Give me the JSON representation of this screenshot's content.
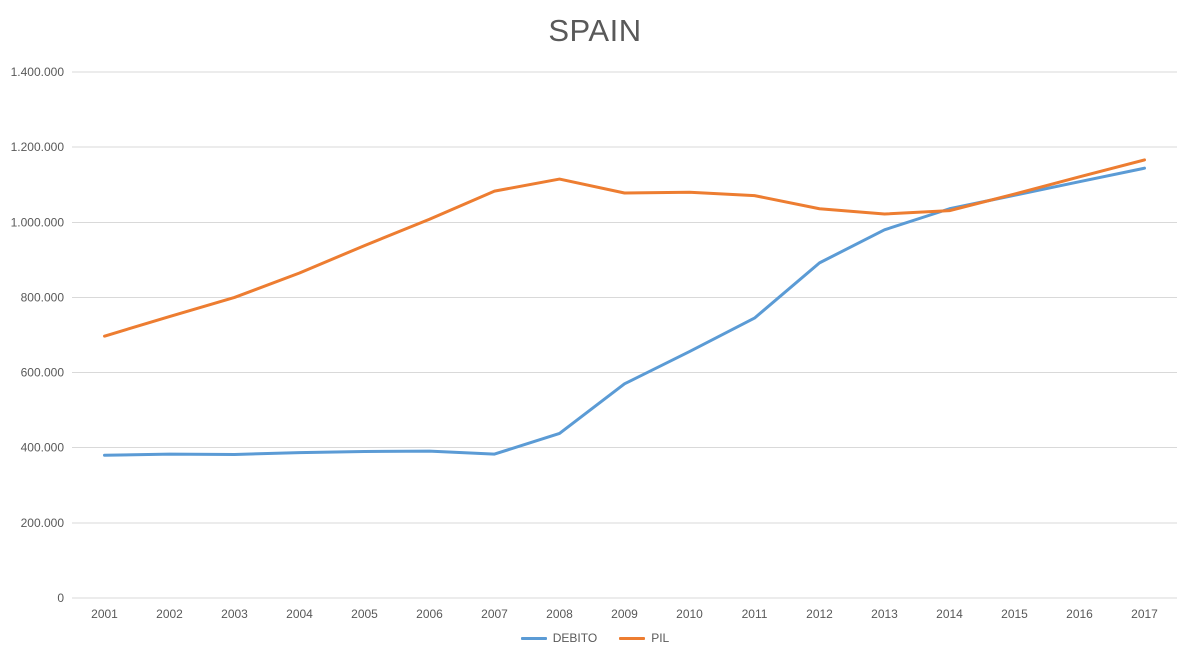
{
  "chart_data": {
    "type": "line",
    "title": "SPAIN",
    "categories": [
      "2001",
      "2002",
      "2003",
      "2004",
      "2005",
      "2006",
      "2007",
      "2008",
      "2009",
      "2010",
      "2011",
      "2012",
      "2013",
      "2014",
      "2015",
      "2016",
      "2017"
    ],
    "series": [
      {
        "name": "DEBITO",
        "color": "#5b9bd5",
        "values": [
          380000,
          383000,
          382000,
          387000,
          390000,
          391000,
          383000,
          438000,
          570000,
          656000,
          745000,
          892000,
          980000,
          1036000,
          1072000,
          1108000,
          1144000
        ]
      },
      {
        "name": "PIL",
        "color": "#ed7d31",
        "values": [
          697000,
          749000,
          800000,
          865000,
          938000,
          1008000,
          1083000,
          1115000,
          1078000,
          1080000,
          1071000,
          1036000,
          1022000,
          1031000,
          1075000,
          1121000,
          1166000
        ]
      }
    ],
    "xlabel": "",
    "ylabel": "",
    "ylim": [
      0,
      1400000
    ],
    "ytick_values": [
      0,
      200000,
      400000,
      600000,
      800000,
      1000000,
      1200000,
      1400000
    ],
    "ytick_labels": [
      "0",
      "200.000",
      "400.000",
      "600.000",
      "800.000",
      "1.000.000",
      "1.200.000",
      "1.400.000"
    ],
    "grid": true,
    "legend_position": "bottom"
  },
  "style": {
    "grid_color": "#d9d9d9",
    "text_color": "#595959",
    "background": "#ffffff"
  }
}
